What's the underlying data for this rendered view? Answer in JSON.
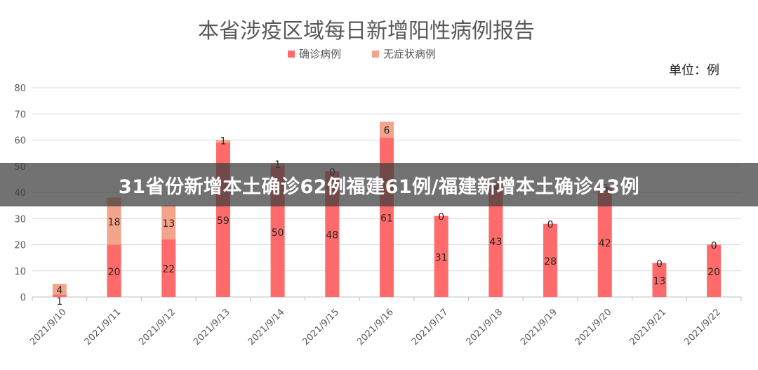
{
  "overlay": {
    "headline": "31省份新增本土确诊62例福建61例/福建新增本土确诊43例"
  },
  "colors": {
    "confirmed": "#ff6b6b",
    "asymptomatic": "#f4a48a",
    "grid": "#d9d9d9",
    "axis_text": "#595959",
    "title_text": "#595959"
  },
  "chart_data": {
    "type": "bar",
    "stacked": true,
    "title": "本省涉疫区域每日新增阳性病例报告",
    "unit_label": "单位：例",
    "categories": [
      "2021/9/10",
      "2021/9/11",
      "2021/9/12",
      "2021/9/13",
      "2021/9/14",
      "2021/9/15",
      "2021/9/16",
      "2021/9/17",
      "2021/9/18",
      "2021/9/19",
      "2021/9/20",
      "2021/9/21",
      "2021/9/22"
    ],
    "series": [
      {
        "name": "确诊病例",
        "color": "#ff6b6b",
        "values": [
          1,
          20,
          22,
          59,
          50,
          48,
          61,
          31,
          43,
          28,
          42,
          13,
          20
        ]
      },
      {
        "name": "无症状病例",
        "color": "#f4a48a",
        "values": [
          4,
          18,
          13,
          1,
          1,
          0,
          6,
          0,
          0,
          0,
          0,
          0,
          0
        ]
      }
    ],
    "ylim": [
      0,
      80
    ],
    "yticks": [
      0,
      10,
      20,
      30,
      40,
      50,
      60,
      70,
      80
    ],
    "legend_position": "top",
    "grid": true
  }
}
